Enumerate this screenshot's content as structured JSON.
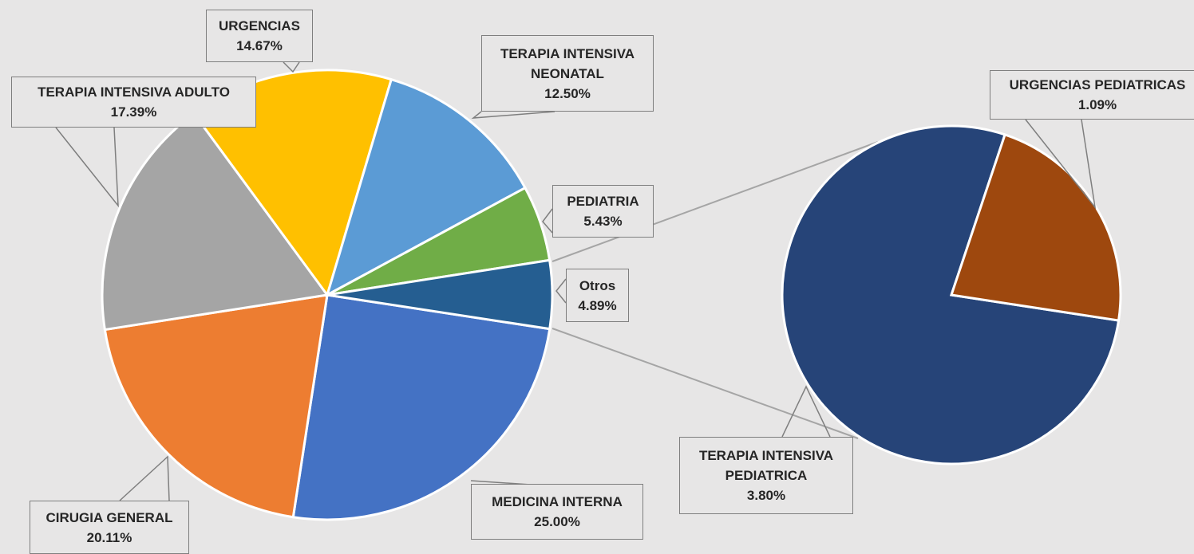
{
  "chart_data": {
    "type": "pie_of_pie",
    "categories": [
      "MEDICINA INTERNA",
      "CIRUGIA GENERAL",
      "TERAPIA INTENSIVA ADULTO",
      "URGENCIAS",
      "TERAPIA INTENSIVA NEONATAL",
      "PEDIATRIA",
      "Otros"
    ],
    "values": [
      25.0,
      20.11,
      17.39,
      14.67,
      12.5,
      5.43,
      4.89
    ],
    "value_labels": [
      "25.00%",
      "20.11%",
      "17.39%",
      "14.67%",
      "12.50%",
      "5.43%",
      "4.89%"
    ],
    "colors": [
      "#4472c4",
      "#ed7d31",
      "#a5a5a5",
      "#ffc000",
      "#5b9bd5",
      "#70ad47",
      "#255e91"
    ],
    "secondary": {
      "categories": [
        "TERAPIA INTENSIVA PEDIATRICA",
        "URGENCIAS PEDIATRICAS"
      ],
      "values": [
        3.8,
        1.09
      ],
      "value_labels": [
        "3.80%",
        "1.09%"
      ],
      "colors": [
        "#264478",
        "#9e480e"
      ]
    }
  }
}
